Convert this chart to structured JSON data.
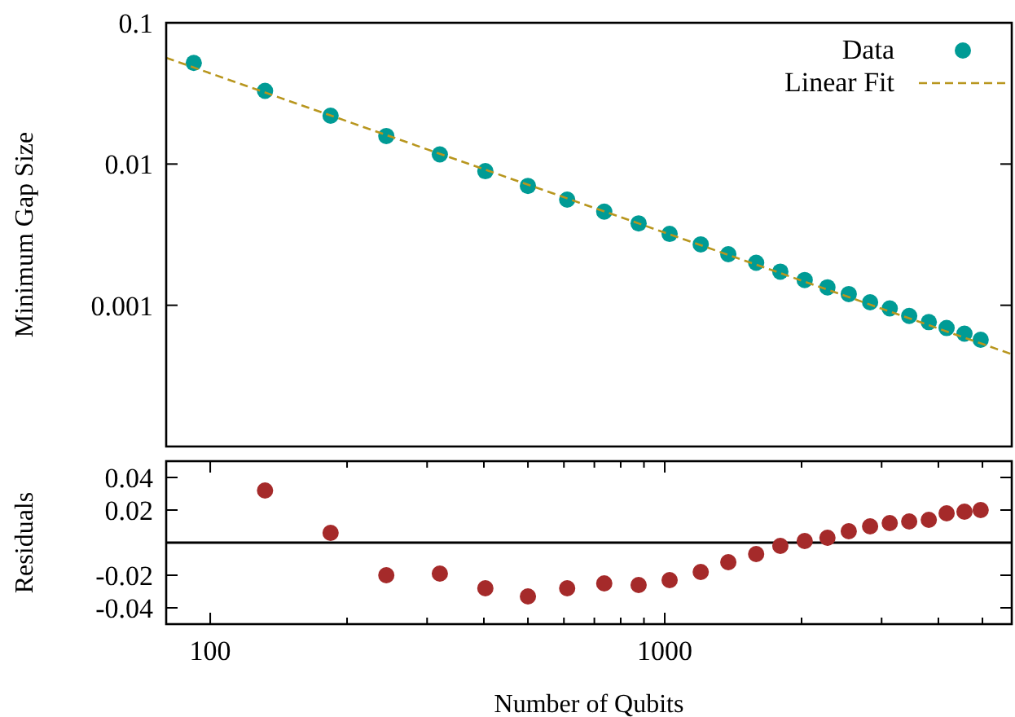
{
  "chart_data": [
    {
      "type": "scatter",
      "ylabel": "Minimum Gap Size",
      "log": "xy",
      "legend": "top right",
      "tick_labels": "y",
      "marker": "circle",
      "xlim": [
        80,
        5800
      ],
      "ylim": [
        0.0001,
        0.1
      ],
      "yticks": [
        0.1,
        0.01,
        0.001
      ],
      "series": [
        {
          "name": "Data",
          "color": "#009b95",
          "x": [
            92,
            132,
            184,
            244,
            320,
            403,
            500,
            610,
            736,
            876,
            1025,
            1200,
            1380,
            1589,
            1796,
            2032,
            2280,
            2540,
            2830,
            3126,
            3450,
            3810,
            4170,
            4565,
            4955
          ],
          "values": [
            0.052,
            0.033,
            0.022,
            0.0158,
            0.0117,
            0.0089,
            0.007,
            0.0056,
            0.0046,
            0.0038,
            0.0032,
            0.0027,
            0.0023,
            0.002,
            0.00173,
            0.00151,
            0.00134,
            0.0012,
            0.00105,
            0.00095,
            0.00084,
            0.00076,
            0.00069,
            0.00063,
            0.00057
          ]
        },
        {
          "name": "Linear Fit",
          "type": "line",
          "marker": "none",
          "color": "#b8961e",
          "line_style": "dashed",
          "x": [
            80,
            5800
          ],
          "values": [
            0.0565,
            0.00045
          ]
        }
      ]
    },
    {
      "type": "scatter",
      "xlabel": "Number of Qubits",
      "ylabel": "Residuals",
      "log": "x",
      "marker": "circle",
      "xlim": [
        80,
        5800
      ],
      "ylim": [
        -0.05,
        0.05
      ],
      "xticks": [
        100,
        {
          "value": 200,
          "label": null
        },
        {
          "value": 300,
          "label": null
        },
        {
          "value": 400,
          "label": null
        },
        {
          "value": 500,
          "label": null
        },
        {
          "value": 600,
          "label": null
        },
        {
          "value": 700,
          "label": null
        },
        {
          "value": 800,
          "label": null
        },
        {
          "value": 900,
          "label": null
        },
        1000,
        {
          "value": 2000,
          "label": null
        },
        {
          "value": 3000,
          "label": null
        },
        {
          "value": 4000,
          "label": null
        },
        {
          "value": 5000,
          "label": null
        }
      ],
      "yticks": [
        0.04,
        0.02,
        -0.02,
        -0.04
      ],
      "ref_lines": [
        {
          "axis": "y",
          "value": 0,
          "color": "#000000"
        }
      ],
      "x": [
        132,
        184,
        244,
        320,
        403,
        500,
        610,
        736,
        876,
        1025,
        1200,
        1380,
        1589,
        1796,
        2032,
        2280,
        2540,
        2830,
        3126,
        3450,
        3810,
        4170,
        4565,
        4955
      ],
      "series": [
        {
          "color": "#a52a2a",
          "values": [
            0.032,
            0.006,
            -0.02,
            -0.019,
            -0.028,
            -0.033,
            -0.028,
            -0.025,
            -0.026,
            -0.023,
            -0.018,
            -0.012,
            -0.007,
            -0.002,
            0.001,
            0.003,
            0.007,
            0.01,
            0.012,
            0.013,
            0.014,
            0.018,
            0.019,
            0.02
          ]
        }
      ]
    }
  ]
}
